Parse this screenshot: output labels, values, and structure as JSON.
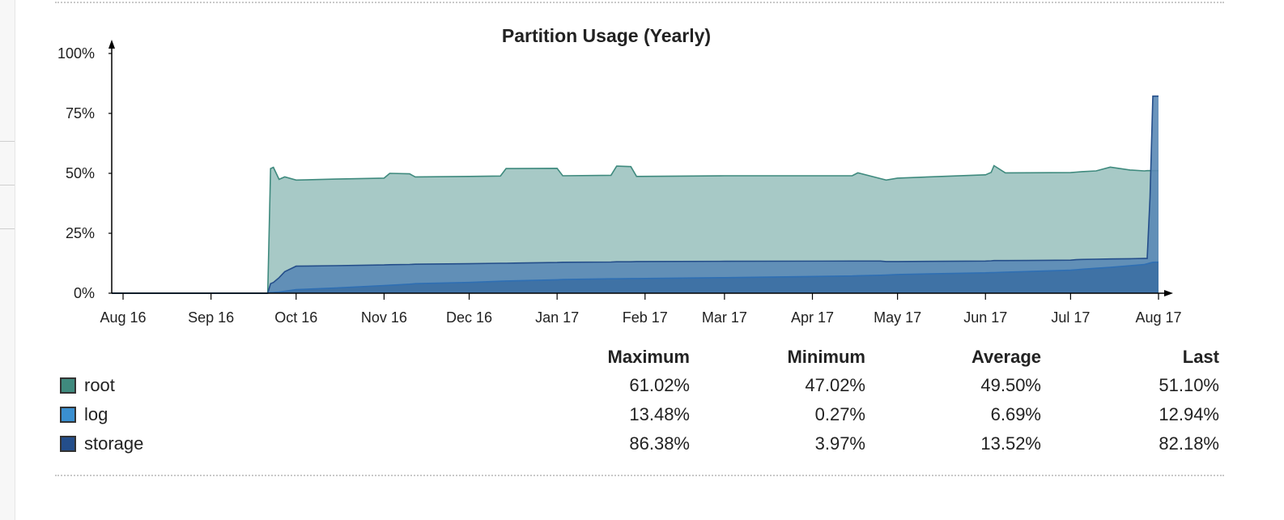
{
  "chart_data": {
    "type": "area",
    "title": "Partition Usage (Yearly)",
    "y_ticks": [
      "0%",
      "25%",
      "50%",
      "75%",
      "100%"
    ],
    "ylim": [
      0,
      100
    ],
    "x_ticks": [
      "Aug 16",
      "Sep 16",
      "Oct 16",
      "Nov 16",
      "Dec 16",
      "Jan 17",
      "Feb 17",
      "Mar 17",
      "Apr 17",
      "May 17",
      "Jun 17",
      "Jul 17",
      "Aug 17"
    ],
    "xlim": [
      "2016-07-28",
      "2017-08-01"
    ],
    "grid": false,
    "x": [
      "2016-07-28",
      "2016-09-21",
      "2016-09-22",
      "2016-09-23",
      "2016-09-25",
      "2016-09-27",
      "2016-10-01",
      "2016-10-15",
      "2016-11-01",
      "2016-11-03",
      "2016-11-10",
      "2016-11-12",
      "2016-12-01",
      "2016-12-12",
      "2016-12-14",
      "2017-01-01",
      "2017-01-03",
      "2017-01-20",
      "2017-01-22",
      "2017-01-27",
      "2017-01-29",
      "2017-03-01",
      "2017-04-15",
      "2017-04-17",
      "2017-04-25",
      "2017-04-27",
      "2017-05-01",
      "2017-06-01",
      "2017-06-03",
      "2017-06-04",
      "2017-06-08",
      "2017-07-01",
      "2017-07-03",
      "2017-07-05",
      "2017-07-10",
      "2017-07-15",
      "2017-07-22",
      "2017-07-27",
      "2017-07-28",
      "2017-07-29",
      "2017-07-30",
      "2017-08-01"
    ],
    "series": [
      {
        "name": "root",
        "color": "#3f8a7e",
        "fill": "#9dc3c0",
        "values": [
          0,
          0,
          52,
          52.5,
          47.5,
          48.5,
          47.2,
          47.6,
          48,
          50,
          49.8,
          48.5,
          48.7,
          48.9,
          52,
          52.1,
          49,
          49.2,
          53,
          52.8,
          48.7,
          49,
          49,
          50.2,
          47.8,
          47.2,
          48,
          49.4,
          50.4,
          53.2,
          50.2,
          50.3,
          50.5,
          50.7,
          51,
          52.6,
          51.4,
          51,
          51.1,
          51.1,
          51.1,
          51.1
        ]
      },
      {
        "name": "storage",
        "color": "#244e8a",
        "fill": "#5a88b5",
        "values": [
          0,
          0,
          3.97,
          4.5,
          6.5,
          9,
          11.3,
          11.5,
          11.8,
          11.9,
          12,
          12.1,
          12.3,
          12.5,
          12.5,
          12.8,
          12.9,
          13,
          13.1,
          13.1,
          13.2,
          13.3,
          13.4,
          13.4,
          13.4,
          13.2,
          13.2,
          13.4,
          13.5,
          13.6,
          13.6,
          13.8,
          14,
          14.1,
          14.2,
          14.3,
          14.4,
          14.5,
          14.5,
          40,
          82.18,
          82.18
        ]
      },
      {
        "name": "log",
        "color": "#2f6fb3",
        "fill": "#3c6fa3",
        "values": [
          0,
          0,
          0.27,
          0.3,
          0.5,
          0.8,
          1.5,
          2.2,
          3.2,
          3.3,
          3.8,
          4,
          4.5,
          5,
          5.1,
          5.6,
          5.7,
          6,
          6,
          6.1,
          6.1,
          6.5,
          7.2,
          7.3,
          7.5,
          7.6,
          7.8,
          8.5,
          8.6,
          8.6,
          8.8,
          9.6,
          9.8,
          10,
          10.4,
          10.8,
          11.5,
          12,
          12.3,
          12.6,
          12.9,
          12.94
        ]
      }
    ]
  },
  "legend": {
    "headers": [
      "Maximum",
      "Minimum",
      "Average",
      "Last"
    ],
    "rows": [
      {
        "name": "root",
        "color": "#3f8a7e",
        "maximum": "61.02%",
        "minimum": "47.02%",
        "average": "49.50%",
        "last": "51.10%"
      },
      {
        "name": "log",
        "color": "#3a8fd0",
        "maximum": "13.48%",
        "minimum": "0.27%",
        "average": "6.69%",
        "last": "12.94%"
      },
      {
        "name": "storage",
        "color": "#244e8a",
        "maximum": "86.38%",
        "minimum": "3.97%",
        "average": "13.52%",
        "last": "82.18%"
      }
    ]
  }
}
